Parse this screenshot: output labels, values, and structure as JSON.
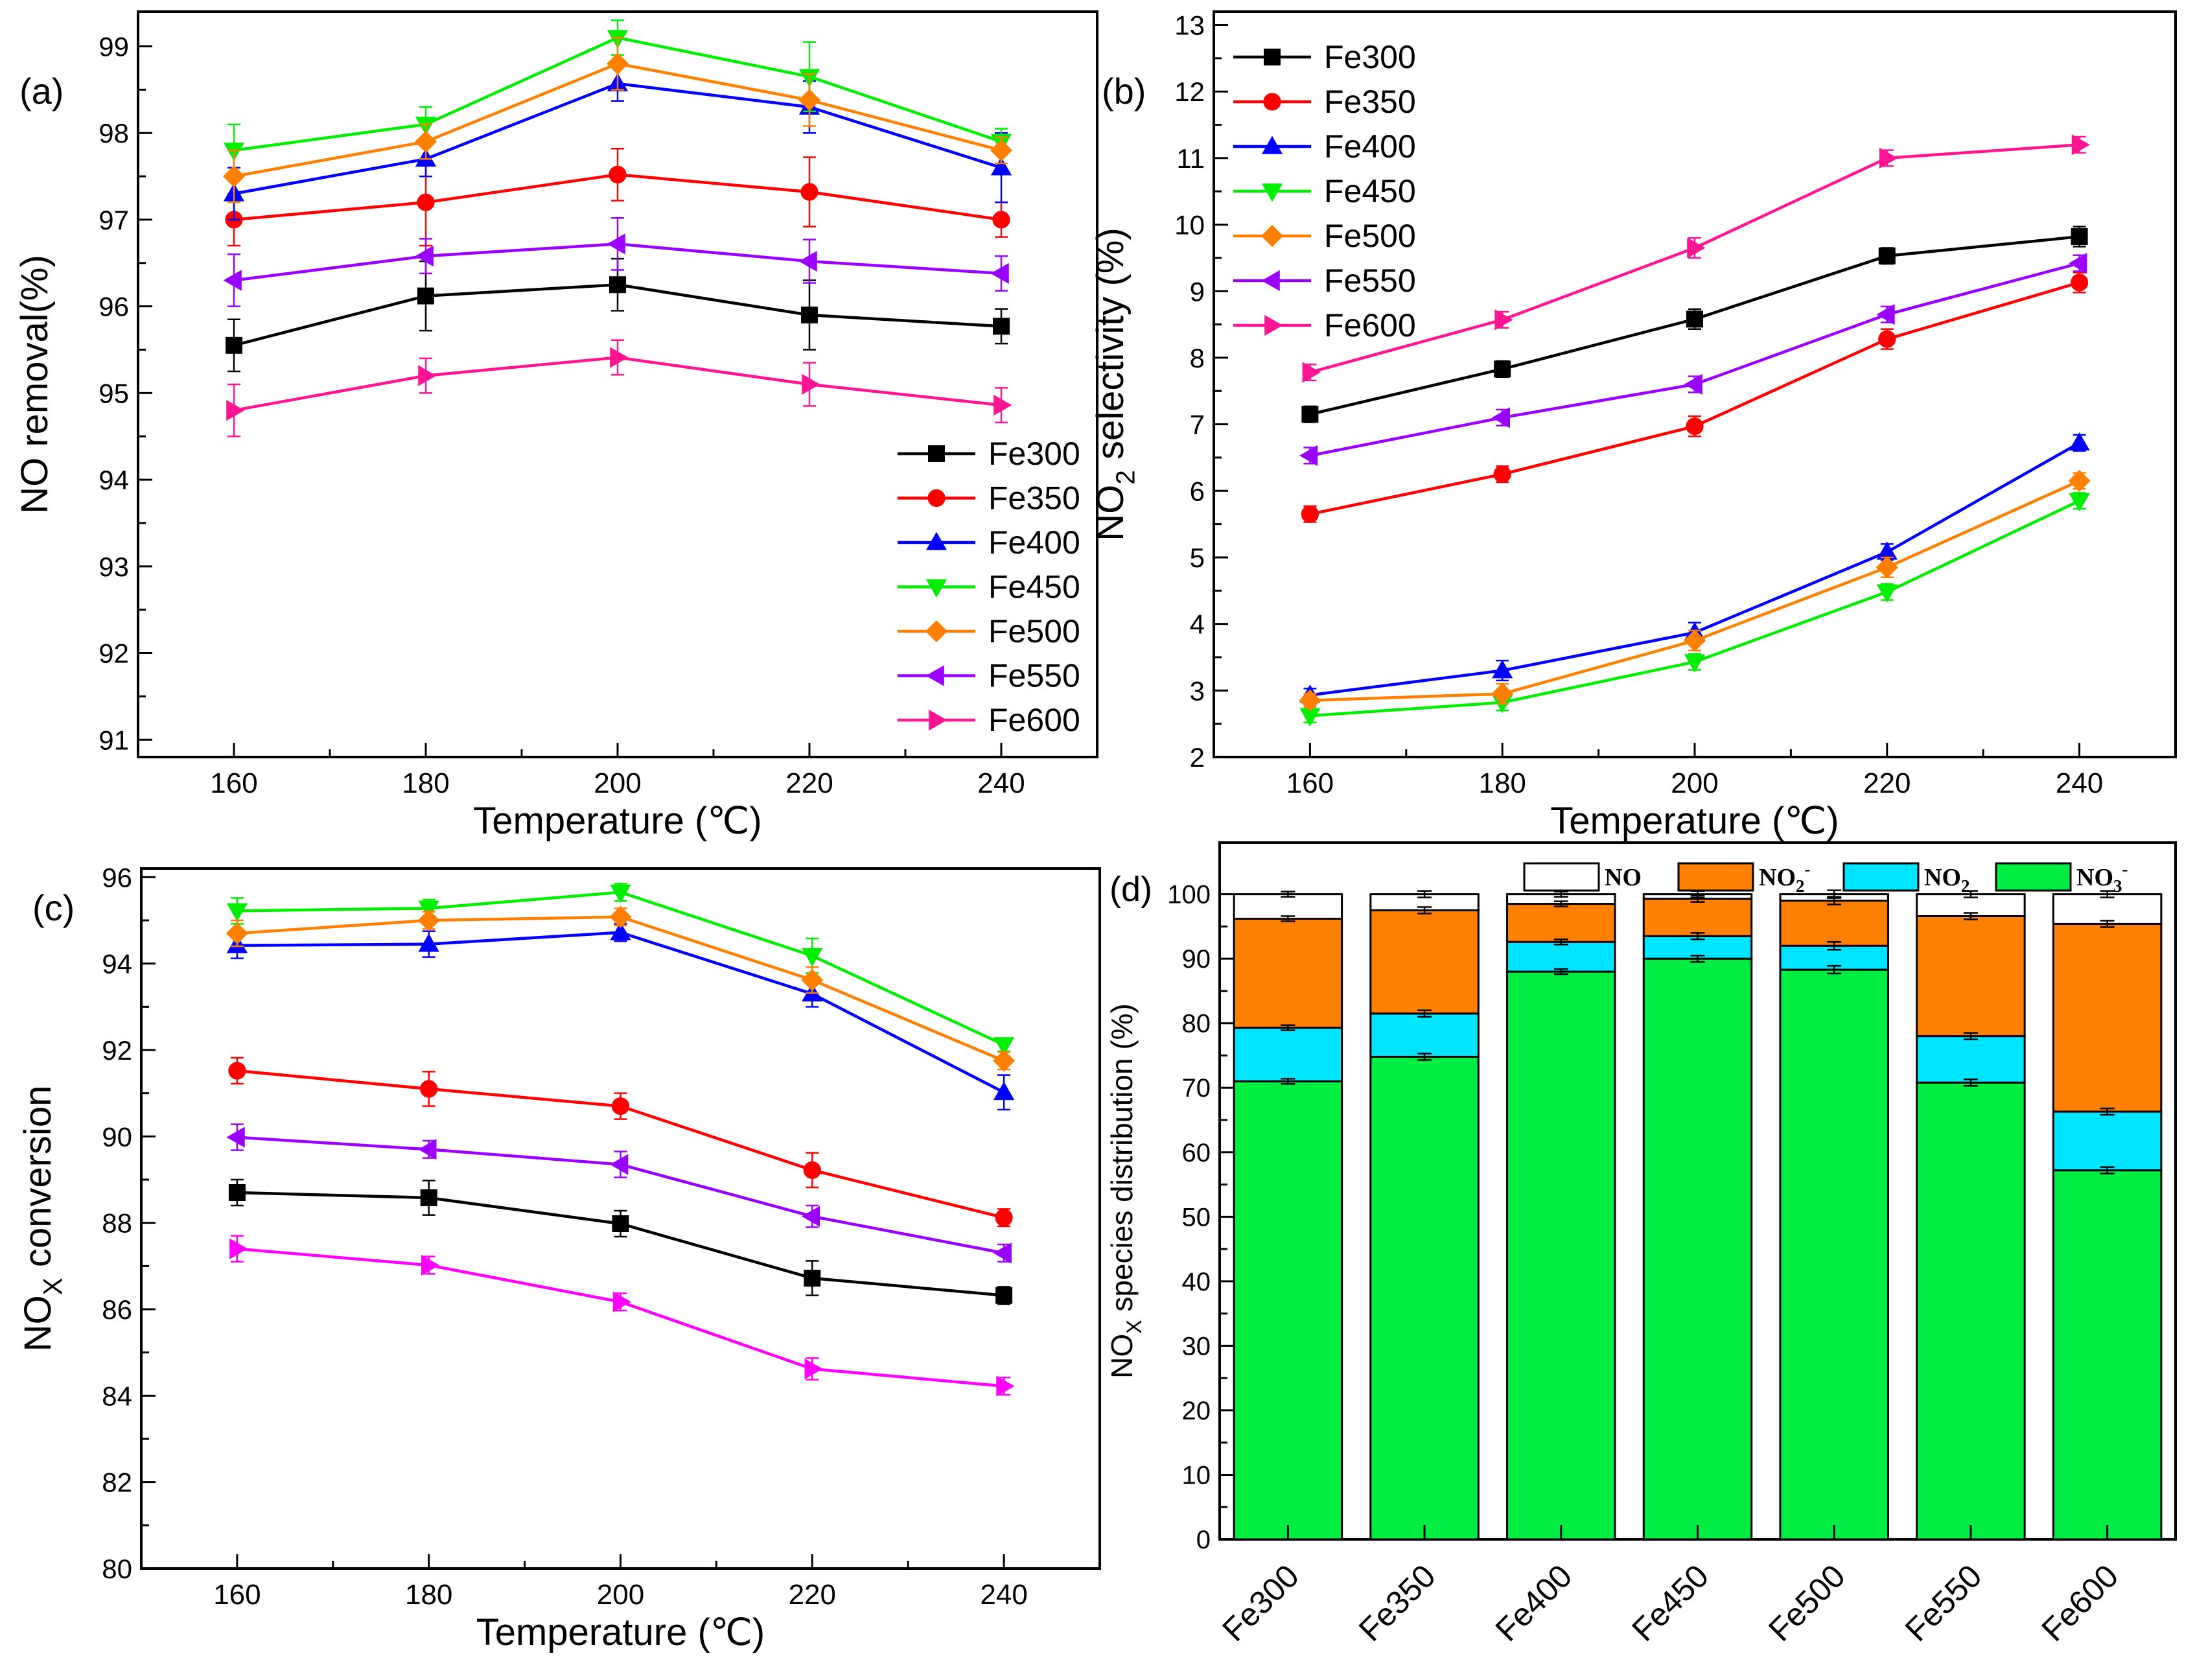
{
  "colors": {
    "Fe300": "#000000",
    "Fe350": "#ff0000",
    "Fe400": "#0000ff",
    "Fe450": "#00ee00",
    "Fe500": "#ff8000",
    "Fe550": "#9900ff",
    "Fe600": "#ff1493",
    "Fe600_c": "#ff00ff",
    "NO": "#ffffff",
    "NO2m": "#ff8000",
    "NO2": "#00e5ff",
    "NO3m": "#00ee44"
  },
  "chart_data": [
    {
      "panel": "(a)",
      "type": "line",
      "xlabel": "Temperature (℃)",
      "ylabel": "NO removal(%)",
      "x": [
        160,
        180,
        200,
        220,
        240
      ],
      "xticks": [
        "160",
        "180",
        "200",
        "220",
        "240"
      ],
      "ylim": [
        90.8,
        99.4
      ],
      "yticks": [
        "91",
        "92",
        "93",
        "94",
        "95",
        "96",
        "97",
        "98",
        "99"
      ],
      "legend_position": "bottom-right",
      "series": [
        {
          "name": "Fe300",
          "marker": "square",
          "values": [
            95.55,
            96.12,
            96.25,
            95.9,
            95.77
          ],
          "err": [
            0.3,
            0.4,
            0.3,
            0.4,
            0.2
          ]
        },
        {
          "name": "Fe350",
          "marker": "circle",
          "values": [
            97.0,
            97.2,
            97.52,
            97.32,
            97.0
          ],
          "err": [
            0.3,
            0.5,
            0.3,
            0.4,
            0.2
          ]
        },
        {
          "name": "Fe400",
          "marker": "triangle-up",
          "values": [
            97.3,
            97.7,
            98.57,
            98.3,
            97.6
          ],
          "err": [
            0.3,
            0.2,
            0.2,
            0.3,
            0.4
          ]
        },
        {
          "name": "Fe450",
          "marker": "triangle-down",
          "values": [
            97.8,
            98.1,
            99.1,
            98.65,
            97.9
          ],
          "err": [
            0.3,
            0.2,
            0.2,
            0.4,
            0.15
          ]
        },
        {
          "name": "Fe500",
          "marker": "diamond",
          "values": [
            97.5,
            97.9,
            98.8,
            98.38,
            97.8
          ],
          "err": [
            0.3,
            0.2,
            0.3,
            0.3,
            0.15
          ]
        },
        {
          "name": "Fe550",
          "marker": "triangle-left",
          "values": [
            96.3,
            96.58,
            96.72,
            96.52,
            96.38
          ],
          "err": [
            0.3,
            0.2,
            0.3,
            0.25,
            0.2
          ]
        },
        {
          "name": "Fe600",
          "marker": "triangle-right",
          "values": [
            94.8,
            95.2,
            95.41,
            95.1,
            94.86
          ],
          "err": [
            0.3,
            0.2,
            0.2,
            0.25,
            0.2
          ]
        }
      ]
    },
    {
      "panel": "(b)",
      "type": "line",
      "xlabel": "Temperature (℃)",
      "ylabel_pre": "NO",
      "ylabel_sub": "2",
      "ylabel_post": " selectivity (%)",
      "x": [
        160,
        180,
        200,
        220,
        240
      ],
      "xticks": [
        "160",
        "180",
        "200",
        "220",
        "240"
      ],
      "ylim": [
        2,
        13.2
      ],
      "yticks": [
        "2",
        "3",
        "4",
        "5",
        "6",
        "7",
        "8",
        "9",
        "10",
        "11",
        "12",
        "13"
      ],
      "legend_position": "top-left",
      "series": [
        {
          "name": "Fe300",
          "marker": "square",
          "values": [
            7.15,
            7.83,
            8.58,
            9.53,
            9.82
          ],
          "err": [
            0.12,
            0.12,
            0.15,
            0.12,
            0.15
          ]
        },
        {
          "name": "Fe350",
          "marker": "circle",
          "values": [
            5.65,
            6.25,
            6.97,
            8.28,
            9.13
          ],
          "err": [
            0.12,
            0.12,
            0.15,
            0.15,
            0.15
          ]
        },
        {
          "name": "Fe400",
          "marker": "triangle-up",
          "values": [
            2.93,
            3.3,
            3.87,
            5.08,
            6.72
          ],
          "err": [
            0.1,
            0.15,
            0.15,
            0.12,
            0.12
          ]
        },
        {
          "name": "Fe450",
          "marker": "triangle-down",
          "values": [
            2.62,
            2.82,
            3.43,
            4.48,
            5.85
          ],
          "err": [
            0.1,
            0.12,
            0.12,
            0.12,
            0.12
          ]
        },
        {
          "name": "Fe500",
          "marker": "diamond",
          "values": [
            2.85,
            2.95,
            3.75,
            4.85,
            6.15
          ],
          "err": [
            0.1,
            0.15,
            0.15,
            0.15,
            0.12
          ]
        },
        {
          "name": "Fe550",
          "marker": "triangle-left",
          "values": [
            6.53,
            7.1,
            7.6,
            8.65,
            9.42
          ],
          "err": [
            0.12,
            0.12,
            0.12,
            0.12,
            0.12
          ]
        },
        {
          "name": "Fe600",
          "marker": "triangle-right",
          "values": [
            7.78,
            8.57,
            9.65,
            11.0,
            11.2
          ],
          "err": [
            0.12,
            0.12,
            0.15,
            0.12,
            0.12
          ]
        }
      ]
    },
    {
      "panel": "(c)",
      "type": "line",
      "xlabel": "Temperature (℃)",
      "ylabel_pre": "NO",
      "ylabel_sub": "X",
      "ylabel_post": " conversion",
      "x": [
        160,
        180,
        200,
        220,
        240
      ],
      "xticks": [
        "160",
        "180",
        "200",
        "220",
        "240"
      ],
      "ylim": [
        80,
        96.2
      ],
      "yticks": [
        "80",
        "82",
        "84",
        "86",
        "88",
        "90",
        "92",
        "94",
        "96"
      ],
      "series": [
        {
          "name": "Fe300",
          "marker": "square",
          "values": [
            88.7,
            88.58,
            87.98,
            86.72,
            86.32
          ],
          "err": [
            0.3,
            0.4,
            0.3,
            0.4,
            0.2
          ]
        },
        {
          "name": "Fe350",
          "marker": "circle",
          "values": [
            91.52,
            91.1,
            90.7,
            89.22,
            88.12
          ],
          "err": [
            0.3,
            0.4,
            0.3,
            0.4,
            0.2
          ]
        },
        {
          "name": "Fe400",
          "marker": "triangle-up",
          "values": [
            94.42,
            94.45,
            94.72,
            93.3,
            91.02
          ],
          "err": [
            0.3,
            0.3,
            0.2,
            0.3,
            0.4
          ]
        },
        {
          "name": "Fe450",
          "marker": "triangle-down",
          "values": [
            95.22,
            95.28,
            95.65,
            94.18,
            92.12
          ],
          "err": [
            0.3,
            0.2,
            0.2,
            0.4,
            0.15
          ]
        },
        {
          "name": "Fe500",
          "marker": "diamond",
          "values": [
            94.7,
            95.0,
            95.08,
            93.62,
            91.75
          ],
          "err": [
            0.3,
            0.2,
            0.2,
            0.3,
            0.2
          ]
        },
        {
          "name": "Fe550",
          "marker": "triangle-left",
          "values": [
            89.98,
            89.7,
            89.35,
            88.15,
            87.3
          ],
          "err": [
            0.3,
            0.2,
            0.3,
            0.25,
            0.2
          ]
        },
        {
          "name": "Fe600",
          "marker": "triangle-right",
          "color_key": "Fe600_c",
          "values": [
            87.4,
            87.02,
            86.17,
            84.62,
            84.22
          ],
          "err": [
            0.3,
            0.2,
            0.2,
            0.25,
            0.2
          ]
        }
      ]
    },
    {
      "panel": "(d)",
      "type": "stacked-bar",
      "categories": [
        "Fe300",
        "Fe350",
        "Fe400",
        "Fe450",
        "Fe500",
        "Fe550",
        "Fe600"
      ],
      "ylabel_pre": "NO",
      "ylabel_sub": "X",
      "ylabel_post": " species distribution (%)",
      "ylim": [
        0,
        108
      ],
      "yticks": [
        "0",
        "10",
        "20",
        "30",
        "40",
        "50",
        "60",
        "70",
        "80",
        "90",
        "100"
      ],
      "legend_position": "top",
      "stack_order": [
        "NO3-",
        "NO2",
        "NO2-",
        "NO"
      ],
      "legend": [
        {
          "key": "NO",
          "pre": "NO",
          "sub": "",
          "sup": "",
          "color_key": "NO"
        },
        {
          "key": "NO2-",
          "pre": "NO",
          "sub": "2",
          "sup": "-",
          "color_key": "NO2m"
        },
        {
          "key": "NO2",
          "pre": "NO",
          "sub": "2",
          "sup": "",
          "color_key": "NO2"
        },
        {
          "key": "NO3-",
          "pre": "NO",
          "sub": "3",
          "sup": "-",
          "color_key": "NO3m"
        }
      ],
      "cumulative_tops": {
        "NO3-": [
          71.0,
          74.8,
          88.0,
          90.0,
          88.3,
          70.8,
          57.2
        ],
        "NO2": [
          79.3,
          81.5,
          92.6,
          93.5,
          92.0,
          78.0,
          66.3
        ],
        "NO2-": [
          96.2,
          97.5,
          98.5,
          99.3,
          99.0,
          96.6,
          95.4
        ],
        "NO": [
          100,
          100,
          100,
          100,
          100,
          100,
          100
        ]
      },
      "err": [
        0.4,
        0.5,
        0.4,
        0.5,
        0.6,
        0.5,
        0.5
      ]
    }
  ]
}
